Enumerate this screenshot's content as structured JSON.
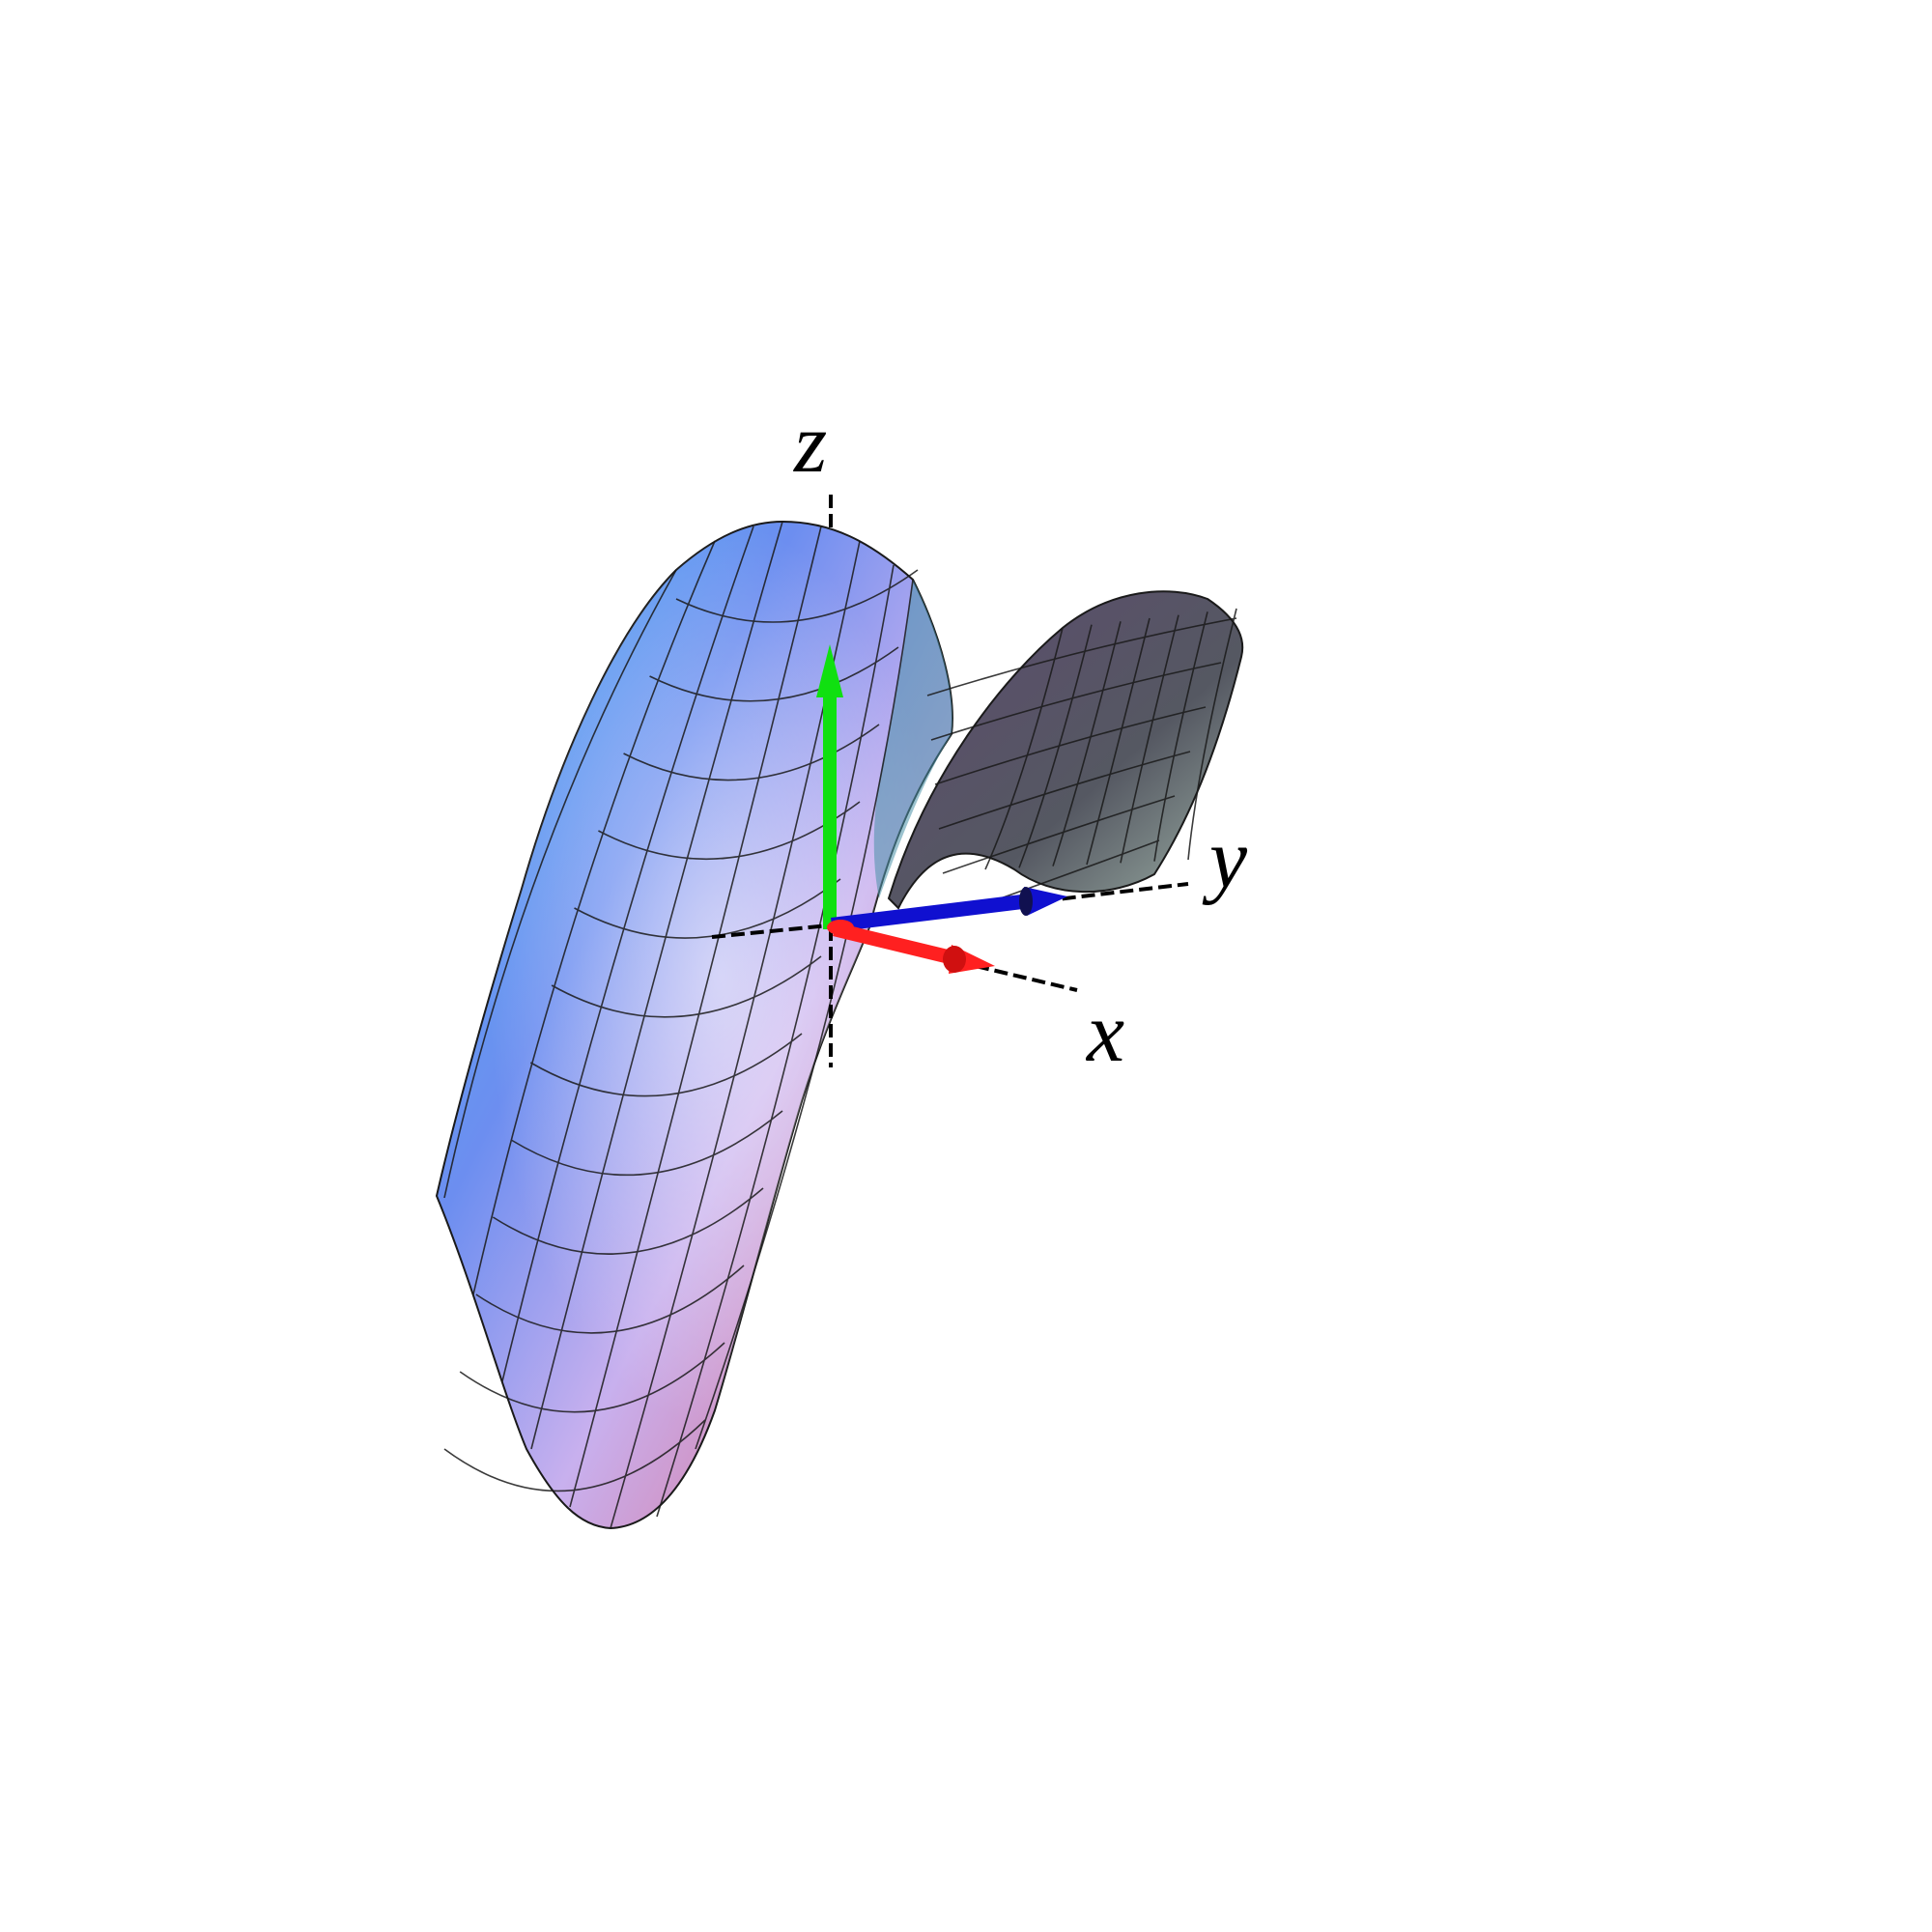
{
  "figure": {
    "axes": {
      "x": {
        "label": "x"
      },
      "y": {
        "label": "y"
      },
      "z": {
        "label": "z"
      }
    },
    "vectors": [
      {
        "axis": "x",
        "color": "#ff2020"
      },
      {
        "axis": "y",
        "color": "#1010d0"
      },
      {
        "axis": "z",
        "color": "#10e010"
      }
    ],
    "surface": {
      "shape": "saddle",
      "colors": [
        "#4fb6f4",
        "#6c8ef0",
        "#d7a8e8",
        "#e0607a",
        "#585060",
        "#98a8a0"
      ],
      "mesh_color": "#1a1a1a"
    }
  }
}
